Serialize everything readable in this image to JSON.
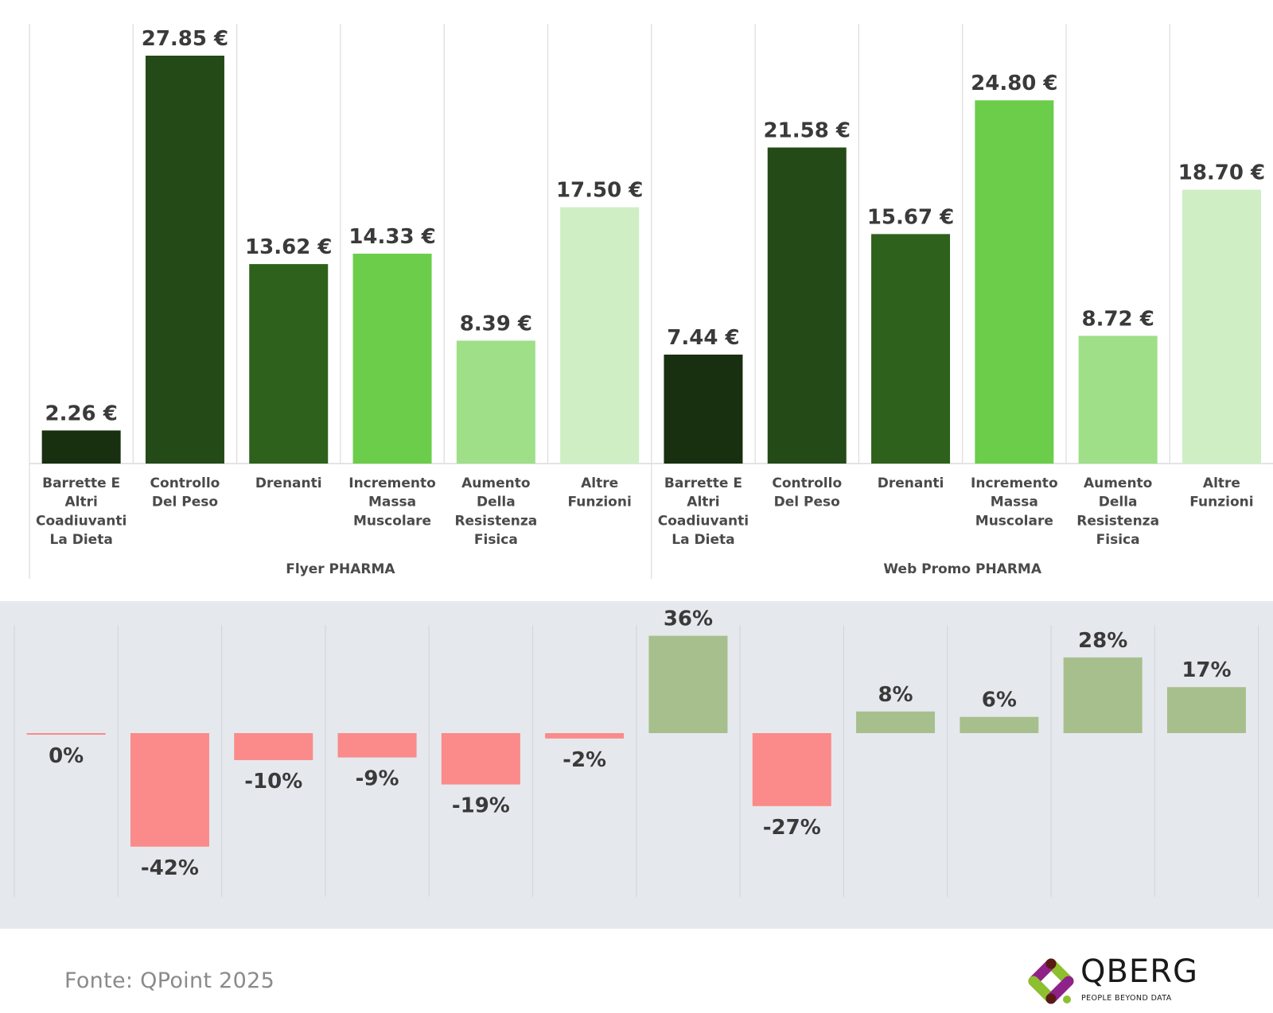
{
  "chart_data": [
    {
      "type": "bar",
      "title": "",
      "xlabel": "",
      "ylabel": "",
      "unit": "€",
      "ylim": [
        0,
        28
      ],
      "grid": false,
      "groups": [
        {
          "name": "Flyer PHARMA",
          "categories": [
            "Barrette E Altri Coadiuvanti La Dieta",
            "Controllo Del Peso",
            "Drenanti",
            "Incremento Massa Muscolare",
            "Aumento Della Resistenza Fisica",
            "Altre Funzioni"
          ],
          "values": [
            2.26,
            27.85,
            13.62,
            14.33,
            8.39,
            17.5
          ],
          "labels": [
            "2.26 €",
            "27.85 €",
            "13.62 €",
            "14.33 €",
            "8.39 €",
            "17.50 €"
          ]
        },
        {
          "name": "Web Promo PHARMA",
          "categories": [
            "Barrette E Altri Coadiuvanti La Dieta",
            "Controllo Del Peso",
            "Drenanti",
            "Incremento Massa Muscolare",
            "Aumento Della Resistenza Fisica",
            "Altre Funzioni"
          ],
          "values": [
            7.44,
            21.58,
            15.67,
            24.8,
            8.72,
            18.7
          ],
          "labels": [
            "7.44 €",
            "21.58 €",
            "15.67 €",
            "24.80 €",
            "8.72 €",
            "18.70 €"
          ]
        }
      ],
      "category_lines": [
        [
          "Barrette E",
          "Altri",
          "Coadiuvanti",
          "La Dieta"
        ],
        [
          "Controllo",
          "Del Peso"
        ],
        [
          "Drenanti"
        ],
        [
          "Incremento",
          "Massa",
          "Muscolare"
        ],
        [
          "Aumento",
          "Della",
          "Resistenza",
          "Fisica"
        ],
        [
          "Altre",
          "Funzioni"
        ]
      ],
      "category_colors": [
        "#182f10",
        "#244a17",
        "#2e611c",
        "#6bcd4a",
        "#9edf88",
        "#cfeec4"
      ]
    },
    {
      "type": "bar",
      "title": "",
      "xlabel": "",
      "ylabel": "",
      "unit": "%",
      "ylim": [
        -42,
        36
      ],
      "grid": false,
      "values": [
        0,
        -42,
        -10,
        -9,
        -19,
        -2,
        36,
        -27,
        8,
        6,
        28,
        17
      ],
      "labels": [
        "0%",
        "-42%",
        "-10%",
        "-9%",
        "-19%",
        "-2%",
        "36%",
        "-27%",
        "8%",
        "6%",
        "28%",
        "17%"
      ],
      "positive_color": "#a7bf8d",
      "negative_color": "#fb8a8a"
    }
  ],
  "footer": {
    "source": "Fonte: QPoint 2025"
  },
  "logo": {
    "name": "QBERG",
    "tagline": "PEOPLE BEYOND DATA",
    "colors": [
      "#8dbf2e",
      "#8f2288",
      "#5a1a14"
    ]
  }
}
